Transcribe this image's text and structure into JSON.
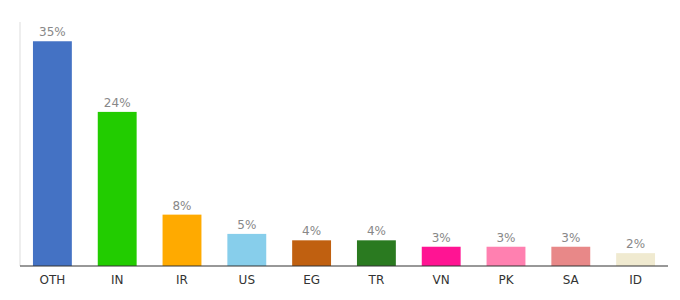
{
  "chart_data": {
    "type": "bar",
    "categories": [
      "OTH",
      "IN",
      "IR",
      "US",
      "EG",
      "TR",
      "VN",
      "PK",
      "SA",
      "ID"
    ],
    "values": [
      35,
      24,
      8,
      5,
      4,
      4,
      3,
      3,
      3,
      2
    ],
    "value_labels": [
      "35%",
      "24%",
      "8%",
      "5%",
      "4%",
      "4%",
      "3%",
      "3%",
      "3%",
      "2%"
    ],
    "colors": [
      "#4472c4",
      "#22cc00",
      "#ffaa00",
      "#87ceeb",
      "#c06010",
      "#2a7a20",
      "#ff1493",
      "#ff80b0",
      "#e88888",
      "#f0ead0"
    ],
    "ylim": [
      0,
      38
    ],
    "data_labels": true,
    "tick_labels": "x",
    "grid": false
  }
}
